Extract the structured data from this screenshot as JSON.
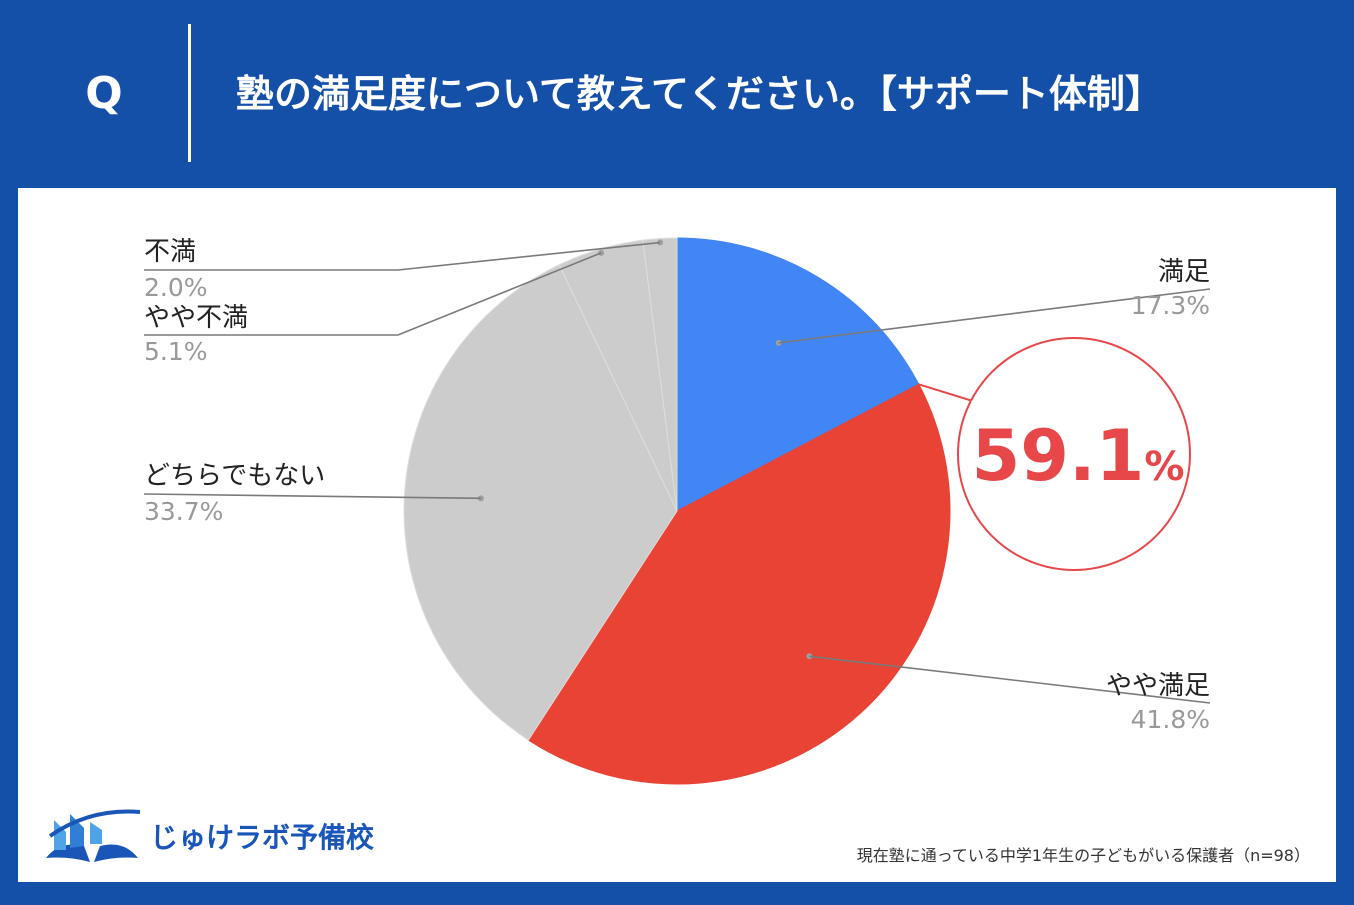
{
  "header": {
    "q_label": "Q",
    "title": "塾の満足度について教えてください。【サポート体制】"
  },
  "colors": {
    "background": "#1550a8",
    "card": "#ffffff",
    "satisfied": "#4285f4",
    "somewhat_satisfied": "#e84335",
    "others": "#cccccc",
    "callout": "#e8474a"
  },
  "chart_data": {
    "type": "pie",
    "start": "top, clockwise",
    "slices": [
      {
        "label": "満足",
        "value": 17.3,
        "display": "17.3%",
        "color": "#4285f4"
      },
      {
        "label": "やや満足",
        "value": 41.8,
        "display": "41.8%",
        "color": "#e84335"
      },
      {
        "label": "どちらでもない",
        "value": 33.7,
        "display": "33.7%",
        "color": "#cccccc"
      },
      {
        "label": "やや不満",
        "value": 5.1,
        "display": "5.1%",
        "color": "#cccccc"
      },
      {
        "label": "不満",
        "value": 2.0,
        "display": "2.0%",
        "color": "#cccccc"
      }
    ],
    "callout": {
      "number": "59.1",
      "unit": "%"
    }
  },
  "logo": {
    "icon": "open-book-icon",
    "text": "じゅけラボ予備校"
  },
  "footnote": "現在塾に通っている中学1年生の子どもがいる保護者（n=98）"
}
